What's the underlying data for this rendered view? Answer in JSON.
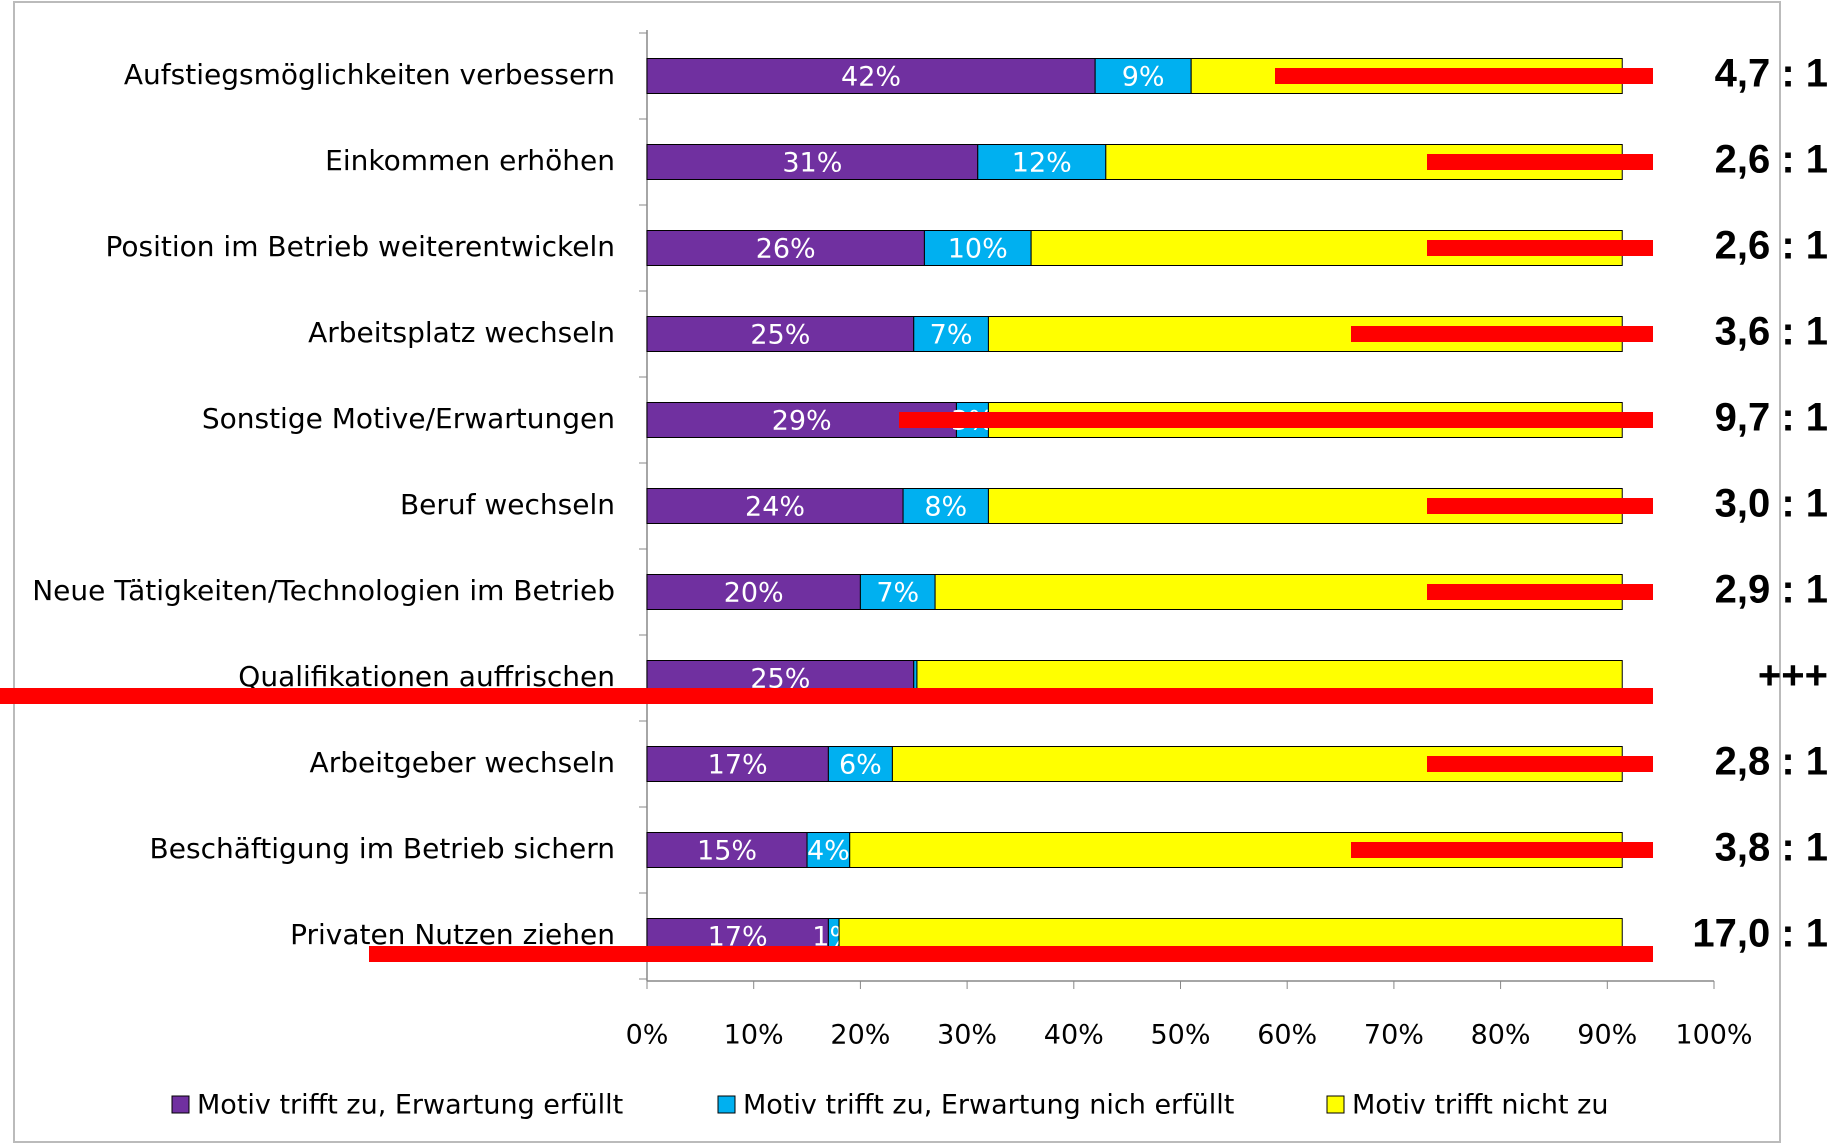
{
  "chart_data": {
    "type": "stacked_bar_horizontal",
    "categories": [
      "Aufstiegsmöglichkeiten verbessern",
      "Einkommen erhöhen",
      "Position im Betrieb weiterentwickeln",
      "Arbeitsplatz wechseln",
      "Sonstige Motive/Erwartungen",
      "Beruf wechseln",
      "Neue Tätigkeiten/Technologien im Betrieb",
      "Qualifikationen auffrischen",
      "Arbeitgeber wechseln",
      "Beschäftigung im Betrieb sichern",
      "Privaten Nutzen ziehen"
    ],
    "series": [
      {
        "name": "Motiv trifft zu, Erwartung erfüllt",
        "color": "#7030a0",
        "values": [
          42,
          31,
          26,
          25,
          29,
          24,
          20,
          25,
          17,
          15,
          17
        ],
        "value_labels": [
          "42%",
          "31%",
          "26%",
          "25%",
          "29%",
          "24%",
          "20%",
          "25%",
          "17%",
          "15%",
          "17%"
        ]
      },
      {
        "name": "Motiv trifft zu, Erwartung nich erfüllt",
        "color": "#00b0f0",
        "values": [
          9,
          12,
          10,
          7,
          3,
          8,
          7,
          0.3,
          6,
          4,
          1
        ],
        "value_labels": [
          "9%",
          "12%",
          "10%",
          "7%",
          "3%",
          "8%",
          "7%",
          null,
          "6%",
          "4%",
          "1%"
        ]
      },
      {
        "name": "Motiv trifft nicht zu",
        "color": "#ffff00",
        "values": [
          40.4,
          48.4,
          55.4,
          59.4,
          59.4,
          59.4,
          64.4,
          66.1,
          68.4,
          72.4,
          73.4
        ]
      }
    ],
    "ratio_labels": [
      "4,7 : 1",
      "2,6 : 1",
      "2,6 : 1",
      "3,6 : 1",
      "9,7 : 1",
      "3,0 : 1",
      "2,9 : 1",
      "+++",
      "2,8 : 1",
      "3,8 : 1",
      "17,0 : 1"
    ],
    "xlim": [
      0,
      100
    ],
    "xticks": [
      {
        "value": 0,
        "label": "0%"
      },
      {
        "value": 10,
        "label": "10%"
      },
      {
        "value": 20,
        "label": "20%"
      },
      {
        "value": 30,
        "label": "30%"
      },
      {
        "value": 40,
        "label": "40%"
      },
      {
        "value": 50,
        "label": "50%"
      },
      {
        "value": 60,
        "label": "60%"
      },
      {
        "value": 70,
        "label": "70%"
      },
      {
        "value": 80,
        "label": "80%"
      },
      {
        "value": 90,
        "label": "90%"
      },
      {
        "value": 100,
        "label": "100%"
      }
    ],
    "legend": "bottom"
  }
}
